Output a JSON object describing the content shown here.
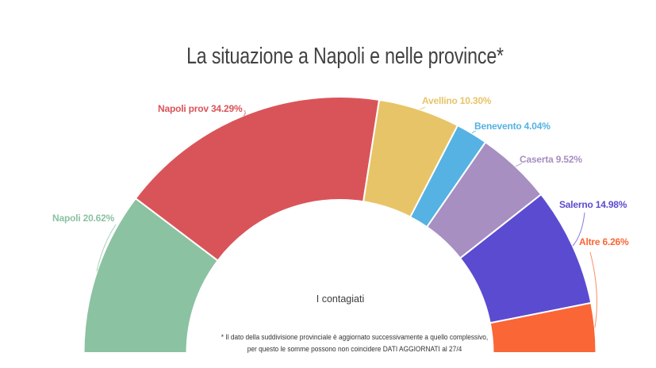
{
  "title": "La situazione a Napoli e nelle province*",
  "center_label": "I contagiati",
  "footnote": {
    "line1": "* Il dato della suddivisione provinciale è aggiornato successivamente a quello complessivo,",
    "line2": "per questo le somme possono non coincidere DATI AGGIORNATI al 27/4"
  },
  "colors": {
    "background": "#ffffff",
    "title_text": "#424242",
    "center_text": "#3c3c3c",
    "footnote_text": "#333333",
    "slice_separator": "#ffffff"
  },
  "chart_data": {
    "type": "pie",
    "variant": "half-donut",
    "title": "La situazione a Napoli e nelle province*",
    "center_label": "I contagiati",
    "unit": "%",
    "legend": "none",
    "label_position": "outside",
    "slices": [
      {
        "label": "Napoli",
        "value": 20.62,
        "display": "Napoli 20.62%",
        "color": "#8BC2A2"
      },
      {
        "label": "Napoli prov",
        "value": 34.29,
        "display": "Napoli prov 34.29%",
        "color": "#D95459"
      },
      {
        "label": "Avellino",
        "value": 10.3,
        "display": "Avellino 10.30%",
        "color": "#E8C468"
      },
      {
        "label": "Benevento",
        "value": 4.04,
        "display": "Benevento 4.04%",
        "color": "#55B2E3"
      },
      {
        "label": "Caserta",
        "value": 9.52,
        "display": "Caserta 9.52%",
        "color": "#A78FC1"
      },
      {
        "label": "Salerno",
        "value": 14.98,
        "display": "Salerno 14.98%",
        "color": "#5B4BD1"
      },
      {
        "label": "Altre",
        "value": 6.26,
        "display": "Altre 6.26%",
        "color": "#FA6636"
      }
    ]
  }
}
